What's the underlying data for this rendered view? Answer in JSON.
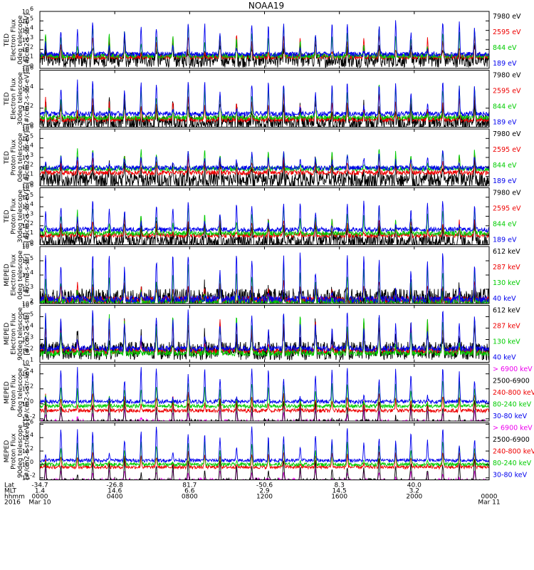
{
  "chart_data": {
    "type": "line",
    "title": "NOAA19",
    "ylog": true,
    "panels": [
      {
        "ylabel": [
          "TED",
          "Electron Flux",
          "0deg telescope",
          "[#/cm2-s-str-eV]"
        ],
        "yticks": [
          {
            "pow": "0",
            "val": 0
          },
          {
            "pow": "1",
            "val": 1
          },
          {
            "pow": "2",
            "val": 2
          },
          {
            "pow": "3",
            "val": 3
          },
          {
            "pow": "4",
            "val": 4
          },
          {
            "pow": "5",
            "val": 5
          },
          {
            "pow": "6",
            "val": 6
          }
        ],
        "ylim_log10": [
          0,
          6
        ],
        "series": [
          {
            "name": "7980 eV",
            "color": "#000000",
            "base": 0.9,
            "peak": 2.6,
            "spiky": true
          },
          {
            "name": "2595 eV",
            "color": "#ee0000",
            "base": 1.2,
            "peak": 3.6
          },
          {
            "name": "844 eV",
            "color": "#00cc00",
            "base": 1.3,
            "peak": 4.4
          },
          {
            "name": "189 eV",
            "color": "#0000ee",
            "base": 1.5,
            "peak": 5.0
          }
        ]
      },
      {
        "ylabel": [
          "TED",
          "Electron Flux",
          "30deg telescope",
          "[#/cm2-s-str-eV]"
        ],
        "yticks": [
          {
            "pow": "0",
            "val": 0
          },
          {
            "pow": "2",
            "val": 2
          },
          {
            "pow": "4",
            "val": 4
          },
          {
            "pow": "6",
            "val": 6
          }
        ],
        "ylim_log10": [
          0,
          6
        ],
        "series": [
          {
            "name": "7980 eV",
            "color": "#000000",
            "base": 0.5,
            "peak": 2.6,
            "spiky": true
          },
          {
            "name": "2595 eV",
            "color": "#ee0000",
            "base": 0.8,
            "peak": 3.6
          },
          {
            "name": "844 eV",
            "color": "#00cc00",
            "base": 1.0,
            "peak": 4.4
          },
          {
            "name": "189 eV",
            "color": "#0000ee",
            "base": 1.4,
            "peak": 5.0
          }
        ]
      },
      {
        "ylabel": [
          "TED",
          "Proton Flux",
          "0deg telescope",
          "[#/cm2-s-str-eV]"
        ],
        "yticks": [
          {
            "pow": "0",
            "val": 0
          },
          {
            "pow": "1",
            "val": 1
          },
          {
            "pow": "2",
            "val": 2
          },
          {
            "pow": "3",
            "val": 3
          },
          {
            "pow": "4",
            "val": 4
          },
          {
            "pow": "5",
            "val": 5
          },
          {
            "pow": "6",
            "val": 6
          }
        ],
        "ylim_log10": [
          0,
          6
        ],
        "series": [
          {
            "name": "7980 eV",
            "color": "#000000",
            "base": 0.6,
            "peak": 2.8,
            "spiky": true
          },
          {
            "name": "2595 eV",
            "color": "#ee0000",
            "base": 1.4,
            "peak": 3.2
          },
          {
            "name": "844 eV",
            "color": "#00cc00",
            "base": 1.8,
            "peak": 3.8
          },
          {
            "name": "189 eV",
            "color": "#0000ee",
            "base": 1.9,
            "peak": 3.6
          }
        ]
      },
      {
        "ylabel": [
          "TED",
          "Proton Flux",
          "30deg telescope",
          "[#/cm2-s-str-eV]"
        ],
        "yticks": [
          {
            "pow": "0",
            "val": 0
          },
          {
            "pow": "1",
            "val": 1
          },
          {
            "pow": "2",
            "val": 2
          },
          {
            "pow": "3",
            "val": 3
          },
          {
            "pow": "4",
            "val": 4
          },
          {
            "pow": "5",
            "val": 5
          },
          {
            "pow": "6",
            "val": 6
          }
        ],
        "ylim_log10": [
          0,
          6
        ],
        "series": [
          {
            "name": "7980 eV",
            "color": "#000000",
            "base": 0.3,
            "peak": 2.2,
            "spiky": true
          },
          {
            "name": "2595 eV",
            "color": "#ee0000",
            "base": 1.0,
            "peak": 2.8
          },
          {
            "name": "844 eV",
            "color": "#00cc00",
            "base": 1.2,
            "peak": 4.0
          },
          {
            "name": "189 eV",
            "color": "#0000ee",
            "base": 1.6,
            "peak": 4.6
          }
        ]
      },
      {
        "ylabel": [
          "MEPED",
          "Electron Flux",
          "0deg telescope",
          "[#/cm2-s-str]"
        ],
        "yticks": [
          {
            "pow": "2",
            "val": 2
          },
          {
            "pow": "3",
            "val": 3
          },
          {
            "pow": "4",
            "val": 4
          },
          {
            "pow": "5",
            "val": 5
          },
          {
            "pow": "6",
            "val": 6
          }
        ],
        "ylim_log10": [
          2,
          6
        ],
        "series": [
          {
            "name": "612 keV",
            "color": "#000000",
            "base": 2.25,
            "peak": 3.0,
            "spiky": true
          },
          {
            "name": "287 keV",
            "color": "#ee0000",
            "base": 2.25,
            "peak": 3.6
          },
          {
            "name": "130 keV",
            "color": "#00cc00",
            "base": 2.1,
            "peak": 4.6
          },
          {
            "name": "40 keV",
            "color": "#0000ee",
            "base": 2.3,
            "peak": 5.6
          }
        ]
      },
      {
        "ylabel": [
          "MEPED",
          "Electron Flux",
          "90deg telescope",
          "[#/cm2-s-str]"
        ],
        "yticks": [
          {
            "pow": "1",
            "val": 1
          },
          {
            "pow": "2",
            "val": 2
          },
          {
            "pow": "3",
            "val": 3
          },
          {
            "pow": "4",
            "val": 4
          },
          {
            "pow": "5",
            "val": 5
          },
          {
            "pow": "6",
            "val": 6
          }
        ],
        "ylim_log10": [
          1,
          6
        ],
        "series": [
          {
            "name": "612 keV",
            "color": "#000000",
            "base": 2.0,
            "peak": 4.4,
            "spiky": true
          },
          {
            "name": "287 keV",
            "color": "#ee0000",
            "base": 2.0,
            "peak": 4.8
          },
          {
            "name": "130 keV",
            "color": "#00cc00",
            "base": 1.8,
            "peak": 5.2
          },
          {
            "name": "40 keV",
            "color": "#0000ee",
            "base": 2.2,
            "peak": 5.7
          }
        ]
      },
      {
        "ylabel": [
          "MEPED",
          "Proton Flux",
          "0deg telescope",
          "[#/cm2-s-str-keV]"
        ],
        "yticks": [
          {
            "pow": "-2",
            "val": -2
          },
          {
            "pow": "0",
            "val": 0
          },
          {
            "pow": "2",
            "val": 2
          },
          {
            "pow": "4",
            "val": 4
          }
        ],
        "ylim_log10": [
          -2.3,
          5.3
        ],
        "series": [
          {
            "name": "> 6900 keV",
            "color": "#ee00ee",
            "base": -2.3,
            "peak": -0.8,
            "sparse": true
          },
          {
            "name": "2500-6900",
            "color": "#000000",
            "base": -2.3,
            "peak": 0.6,
            "sparse": true
          },
          {
            "name": "240-800 keV",
            "color": "#ee0000",
            "base": -0.9,
            "peak": 1.5
          },
          {
            "name": "80-240 keV",
            "color": "#00cc00",
            "base": -0.3,
            "peak": 3.0
          },
          {
            "name": "30-80 keV",
            "color": "#0000ee",
            "base": 0.3,
            "peak": 4.8
          }
        ]
      },
      {
        "ylabel": [
          "MEPED",
          "Proton Flux",
          "90deg telescope",
          "[#/cm2-s-str-keV]"
        ],
        "yticks": [
          {
            "pow": "-2",
            "val": -2
          },
          {
            "pow": "0",
            "val": 0
          },
          {
            "pow": "2",
            "val": 2
          },
          {
            "pow": "4",
            "val": 4
          },
          {
            "pow": "6",
            "val": 6
          }
        ],
        "ylim_log10": [
          -2.3,
          6.2
        ],
        "series": [
          {
            "name": "> 6900 keV",
            "color": "#ee00ee",
            "base": -2.3,
            "peak": -0.8,
            "sparse": true
          },
          {
            "name": "2500-6900",
            "color": "#000000",
            "base": -2.3,
            "peak": 1.0,
            "sparse": true
          },
          {
            "name": "240-800 keV",
            "color": "#ee0000",
            "base": -0.4,
            "peak": 2.0
          },
          {
            "name": "80-240 keV",
            "color": "#00cc00",
            "base": 0.0,
            "peak": 3.4
          },
          {
            "name": "30-80 keV",
            "color": "#0000ee",
            "base": 0.6,
            "peak": 5.6
          }
        ]
      }
    ],
    "x_axis": {
      "row_labels": [
        "Lat",
        "MLT",
        "hhmm",
        "2016"
      ],
      "xlim_hours": [
        0,
        24
      ],
      "ticks": [
        {
          "hour": 0,
          "lat": "-34.7",
          "mlt": "1.4",
          "hhmm": "0000",
          "date": "Mar 10"
        },
        {
          "hour": 4,
          "lat": "-26.8",
          "mlt": "14.6",
          "hhmm": "0400",
          "date": ""
        },
        {
          "hour": 8,
          "lat": "81.7",
          "mlt": "6.6",
          "hhmm": "0800",
          "date": ""
        },
        {
          "hour": 12,
          "lat": "-50.6",
          "mlt": "2.9",
          "hhmm": "1200",
          "date": ""
        },
        {
          "hour": 16,
          "lat": "8.3",
          "mlt": "14.5",
          "hhmm": "1600",
          "date": ""
        },
        {
          "hour": 20,
          "lat": "40.0",
          "mlt": "3.2",
          "hhmm": "2000",
          "date": ""
        },
        {
          "hour": 24,
          "lat": "",
          "mlt": "",
          "hhmm": "0000",
          "date": "Mar 11"
        }
      ]
    },
    "orbit_period_hours": 1.7,
    "grid": false,
    "legend_position": "right of each panel"
  }
}
